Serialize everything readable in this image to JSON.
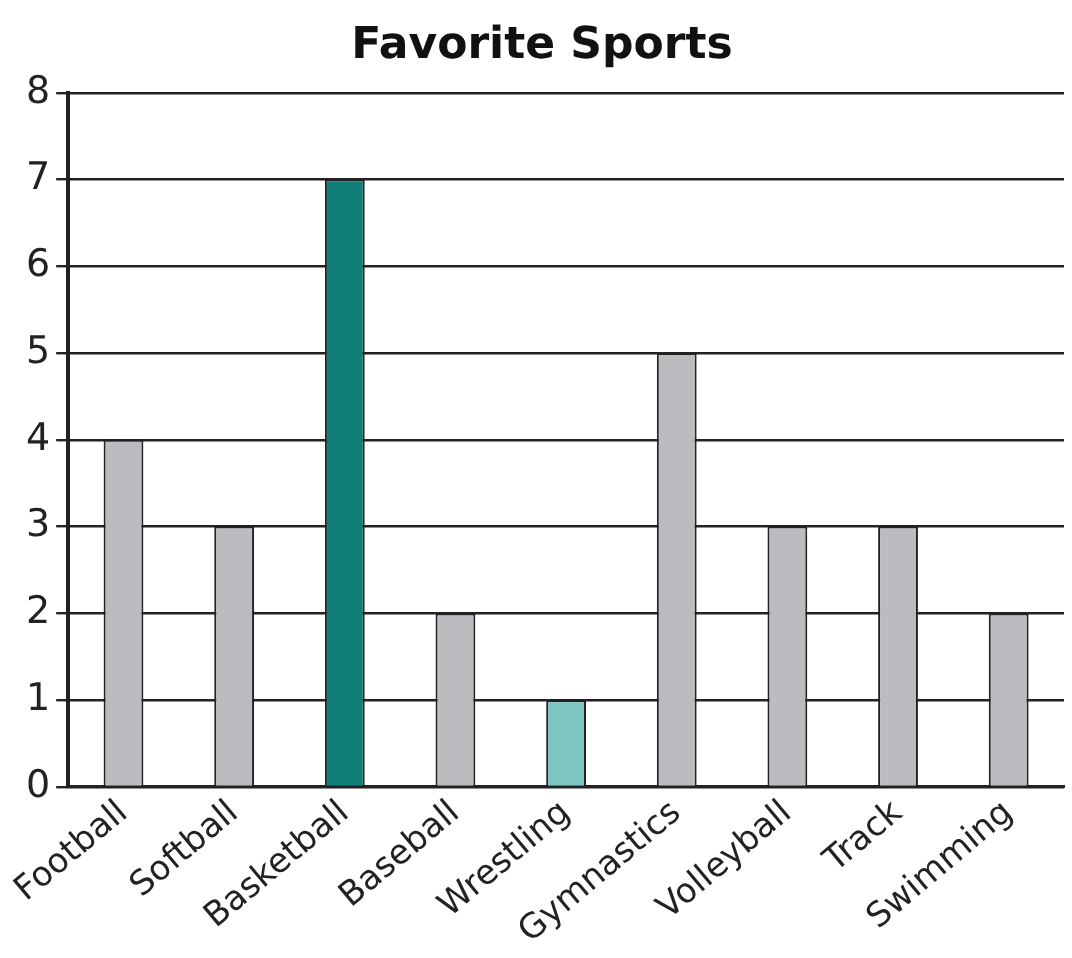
{
  "chart_data": {
    "type": "bar",
    "title": "Favorite Sports",
    "categories": [
      "Football",
      "Softball",
      "Basketball",
      "Baseball",
      "Wrestling",
      "Gymnastics",
      "Volleyball",
      "Track",
      "Swimming"
    ],
    "values": [
      4,
      3,
      7,
      2,
      1,
      5,
      3,
      3,
      2
    ],
    "colors": [
      "#bbbcc0",
      "#bbbcc0",
      "#0f7f78",
      "#bbbcc0",
      "#7ec6c2",
      "#bbbcc0",
      "#bbbcc0",
      "#bbbcc0",
      "#bbbcc0"
    ],
    "ylim": [
      0,
      8
    ],
    "yticks": [
      0,
      1,
      2,
      3,
      4,
      5,
      6,
      7,
      8
    ],
    "grid": "y"
  }
}
